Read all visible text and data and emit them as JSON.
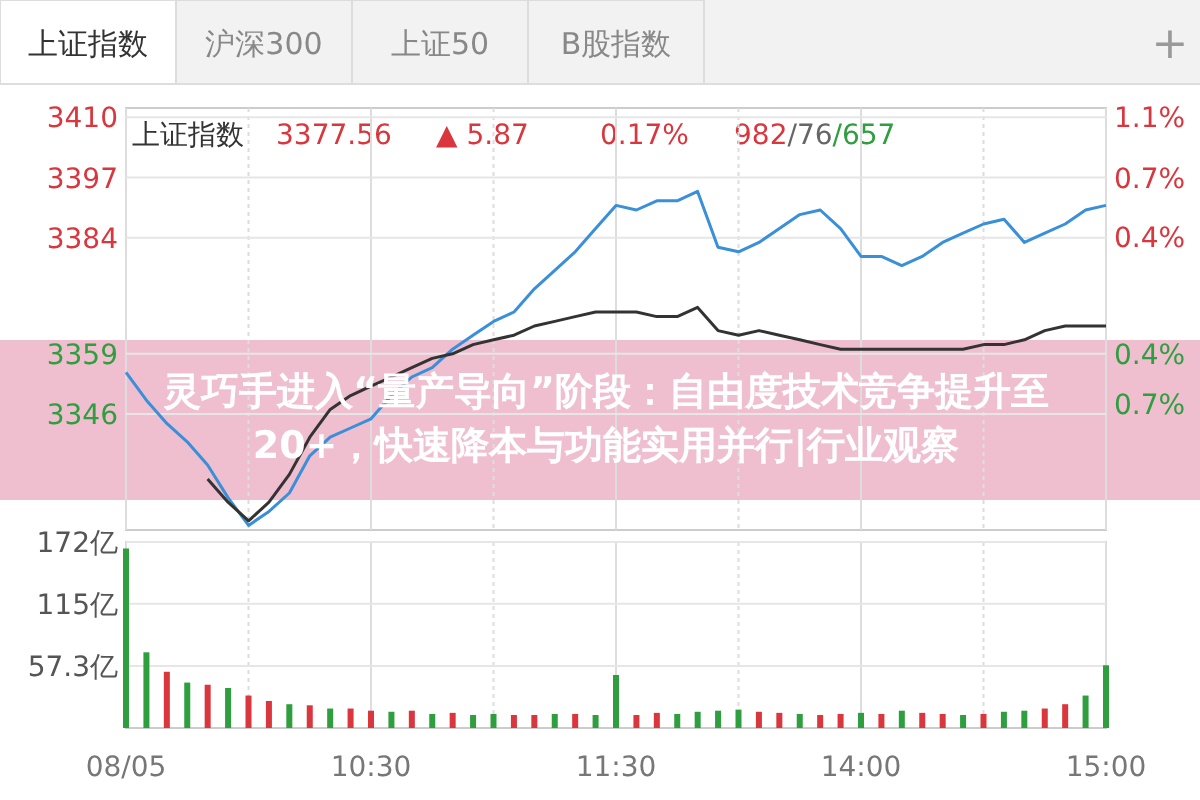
{
  "chart_data": [
    {
      "type": "other",
      "annotations": [
        "上证指数",
        "沪深300",
        "上证50",
        "B股指数",
        "+",
        "上证指数",
        "3377.56",
        "▲ 5.87",
        "0.17%",
        "982/76/657"
      ]
    },
    {
      "type": "line",
      "title": "灵巧手进入“量产导向”阶段：自由度技术竞争提升至20+，快速降本与功能实用并行|行业观察",
      "categories": [
        null,
        null,
        null,
        null,
        null,
        null,
        null,
        null,
        null,
        null,
        null,
        null,
        null,
        null,
        null,
        null,
        null,
        null,
        null,
        null,
        null,
        null,
        null,
        null,
        null,
        null,
        null,
        null,
        null,
        null,
        null,
        null,
        null,
        null,
        null,
        null,
        null,
        null,
        null,
        null,
        null,
        null,
        null,
        null,
        null,
        null,
        null,
        null,
        null
      ],
      "ylim": [
        3321,
        3412
      ],
      "yticks": [
        3410,
        3397,
        3384,
        3359,
        3346
      ],
      "y2lim": [
        -1.503,
        1.195
      ],
      "y2ticks": [
        {
          "value": 1.14,
          "label": "1.1%"
        },
        {
          "value": 0.75,
          "label": "0.7%"
        },
        {
          "value": 0.37,
          "label": "0.4%"
        },
        {
          "value": -0.38,
          "label": "0.4%"
        },
        {
          "value": -0.7,
          "label": "0.7%"
        }
      ],
      "grid": true,
      "tick_labels": "y",
      "series": [
        {
          "color": "#3a8fd9",
          "values": [
            3355,
            3349,
            3344,
            3340,
            3335,
            3328,
            3322,
            3325,
            3329,
            3337,
            3341,
            3343,
            3345,
            3350,
            3354,
            3356,
            3360,
            3363,
            3366,
            3368,
            3373,
            3377,
            3381,
            3386,
            3391,
            3390,
            3392,
            3392,
            3394,
            3382,
            3381,
            3383,
            3386,
            3389,
            3390,
            3386,
            3380,
            3380,
            3378,
            3380,
            3383,
            3385,
            3387,
            3388,
            3383,
            3385,
            3387,
            3390,
            3391
          ]
        },
        {
          "color": "#333333",
          "values": [
            null,
            null,
            null,
            null,
            3332,
            3327,
            3323,
            3327,
            3333,
            3341,
            3347,
            3350,
            3352,
            3354,
            3356,
            3358,
            3359,
            3361,
            3362,
            3363,
            3365,
            3366,
            3367,
            3368,
            3368,
            3368,
            3367,
            3367,
            3369,
            3364,
            3363,
            3364,
            3363,
            3362,
            3361,
            3360,
            3360,
            3360,
            3360,
            3360,
            3360,
            3360,
            3361,
            3361,
            3362,
            3364,
            3365,
            3365,
            3365
          ]
        }
      ]
    },
    {
      "type": "bar",
      "categories": [
        "08/05",
        null,
        null,
        null,
        null,
        null,
        null,
        null,
        null,
        null,
        null,
        null,
        "10:30",
        null,
        null,
        null,
        null,
        null,
        null,
        null,
        null,
        null,
        null,
        null,
        "11:30",
        null,
        null,
        null,
        null,
        null,
        null,
        null,
        null,
        null,
        null,
        null,
        "14:00",
        null,
        null,
        null,
        null,
        null,
        null,
        null,
        null,
        null,
        null,
        null,
        "15:00"
      ],
      "ylim": [
        0,
        172
      ],
      "yticks": [
        {
          "value": 172,
          "label": "172亿"
        },
        {
          "value": 115,
          "label": "115亿"
        },
        {
          "value": 57.3,
          "label": "57.3亿"
        }
      ],
      "grid": true,
      "values": [
        166,
        70,
        52,
        42,
        40,
        37,
        30,
        25,
        22,
        21,
        18,
        18,
        16,
        15,
        16,
        13,
        14,
        12,
        13,
        12,
        12,
        13,
        13,
        12,
        49,
        12,
        14,
        13,
        15,
        16,
        17,
        15,
        14,
        13,
        12,
        13,
        14,
        13,
        16,
        14,
        13,
        12,
        13,
        15,
        16,
        18,
        22,
        30,
        58
      ],
      "colors": [
        "#2e9e3e",
        "#2e9e3e",
        "#d9363e",
        "#2e9e3e",
        "#d9363e",
        "#2e9e3e",
        "#d9363e",
        "#d9363e",
        "#2e9e3e",
        "#d9363e",
        "#2e9e3e",
        "#d9363e",
        "#d9363e",
        "#2e9e3e",
        "#d9363e",
        "#2e9e3e",
        "#d9363e",
        "#2e9e3e",
        "#2e9e3e",
        "#d9363e",
        "#d9363e",
        "#2e9e3e",
        "#d9363e",
        "#2e9e3e",
        "#2e9e3e",
        "#d9363e",
        "#d9363e",
        "#2e9e3e",
        "#2e9e3e",
        "#2e9e3e",
        "#2e9e3e",
        "#d9363e",
        "#d9363e",
        "#2e9e3e",
        "#d9363e",
        "#d9363e",
        "#2e9e3e",
        "#d9363e",
        "#2e9e3e",
        "#d9363e",
        "#d9363e",
        "#2e9e3e",
        "#d9363e",
        "#2e9e3e",
        "#2e9e3e",
        "#d9363e",
        "#d9363e",
        "#2e9e3e",
        "#2e9e3e"
      ]
    }
  ]
}
